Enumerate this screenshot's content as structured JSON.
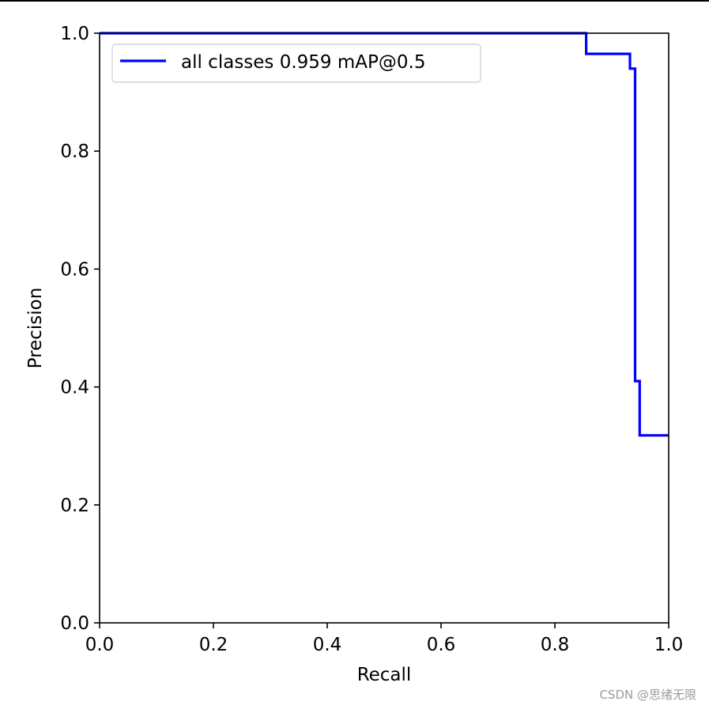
{
  "chart_data": {
    "type": "line",
    "title": "",
    "xlabel": "Recall",
    "ylabel": "Precision",
    "xlim": [
      0.0,
      1.0
    ],
    "ylim": [
      0.0,
      1.0
    ],
    "xticks": [
      "0.0",
      "0.2",
      "0.4",
      "0.6",
      "0.8",
      "1.0"
    ],
    "yticks": [
      "0.0",
      "0.2",
      "0.4",
      "0.6",
      "0.8",
      "1.0"
    ],
    "grid": false,
    "legend_position": "top-left",
    "series": [
      {
        "name": "all classes 0.959 mAP@0.5",
        "color": "#0000ff",
        "x": [
          0.0,
          0.855,
          0.855,
          0.932,
          0.932,
          0.941,
          0.941,
          0.949,
          0.949,
          1.0
        ],
        "y": [
          1.0,
          1.0,
          0.965,
          0.965,
          0.94,
          0.94,
          0.41,
          0.41,
          0.318,
          0.318
        ]
      }
    ]
  },
  "watermark": "CSDN @思绪无限"
}
